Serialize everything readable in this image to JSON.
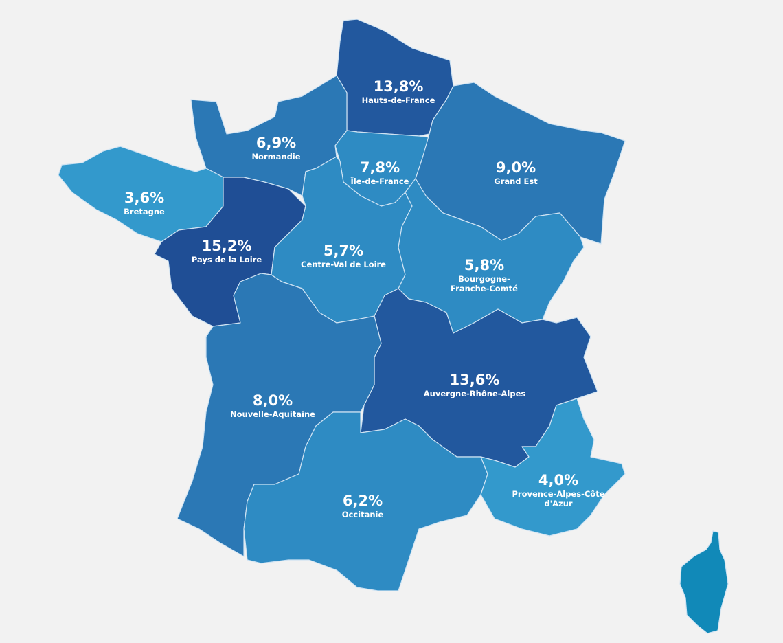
{
  "map": {
    "regions": [
      {
        "name": "Hauts-de-France",
        "value": 13.8,
        "value_label": "13,8%",
        "color": "#22589e"
      },
      {
        "name": "Normandie",
        "value": 6.9,
        "value_label": "6,9%",
        "color": "#2b78b5"
      },
      {
        "name": "Île-de-France",
        "value": 7.8,
        "value_label": "7,8%",
        "color": "#2e8bc3"
      },
      {
        "name": "Grand Est",
        "value": 9.0,
        "value_label": "9,0%",
        "color": "#2b78b5"
      },
      {
        "name": "Bretagne",
        "value": 3.6,
        "value_label": "3,6%",
        "color": "#3399cc"
      },
      {
        "name": "Pays de la Loire",
        "value": 15.2,
        "value_label": "15,2%",
        "color": "#1f4e95"
      },
      {
        "name": "Centre-Val de Loire",
        "value": 5.7,
        "value_label": "5,7%",
        "color": "#2e8bc3"
      },
      {
        "name": "Bourgogne-Franche-Comté",
        "value": 5.8,
        "value_label": "5,8%",
        "color": "#2e8bc3"
      },
      {
        "name": "Auvergne-Rhône-Alpes",
        "value": 13.6,
        "value_label": "13,6%",
        "color": "#22589e"
      },
      {
        "name": "Nouvelle-Aquitaine",
        "value": 8.0,
        "value_label": "8,0%",
        "color": "#2b78b5"
      },
      {
        "name": "Occitanie",
        "value": 6.2,
        "value_label": "6,2%",
        "color": "#2e8bc3"
      },
      {
        "name": "Provence-Alpes-Côte d'Azur",
        "value": 4.0,
        "value_label": "4,0%",
        "color": "#3399cc"
      }
    ]
  }
}
